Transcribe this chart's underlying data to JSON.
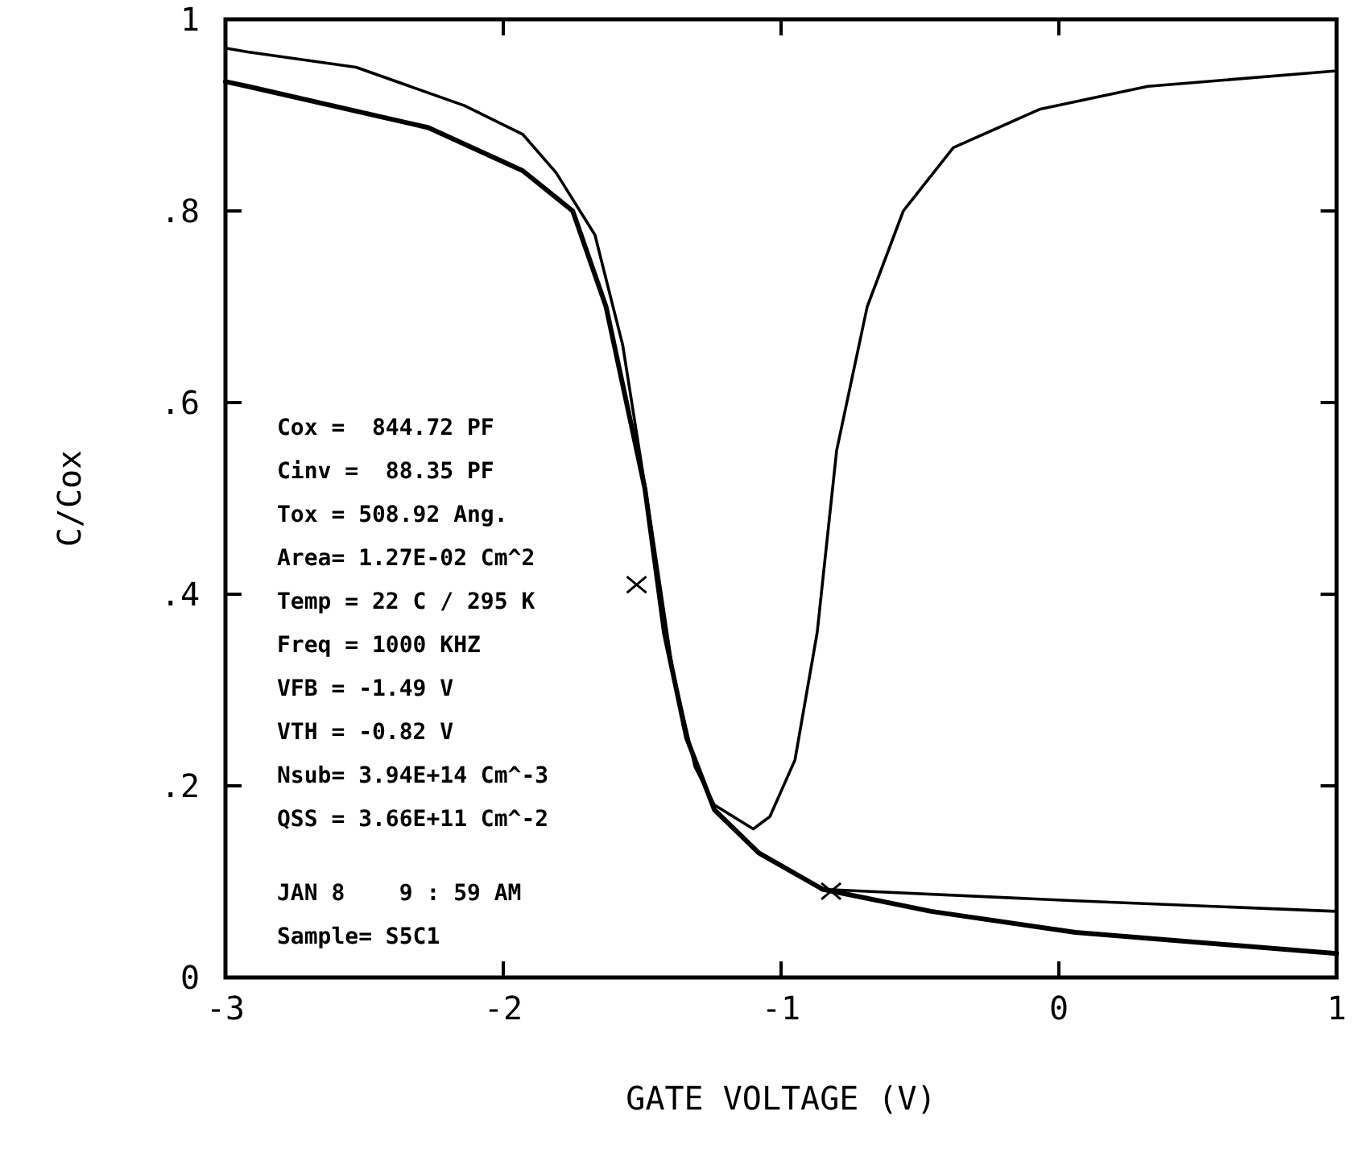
{
  "chart_data": {
    "type": "line",
    "xlabel": "GATE VOLTAGE (V)",
    "ylabel": "C/Cox",
    "xlim": [
      -3,
      1
    ],
    "ylim": [
      0,
      1
    ],
    "xticks": [
      -3,
      -2,
      -1,
      0,
      1
    ],
    "yticks": [
      0,
      {
        "value": 0.2,
        "label": ".2"
      },
      {
        "value": 0.4,
        "label": ".4"
      },
      {
        "value": 0.6,
        "label": ".6"
      },
      {
        "value": 0.8,
        "label": ".8"
      },
      1
    ],
    "grid": false,
    "marker": "none",
    "line_style": "solid",
    "series": [
      {
        "color": "#000000",
        "x": [
          -3,
          -2.92,
          -2.53,
          -2.14,
          -1.93,
          -1.81,
          -1.67,
          -1.57,
          -1.47,
          -1.39,
          -1.31,
          -1.24,
          -1.1,
          -1.04,
          -0.95,
          -0.87,
          -0.8,
          -0.69,
          -0.56,
          -0.38,
          -0.07,
          0.32,
          0.99
        ],
        "values": [
          0.97,
          0.966,
          0.95,
          0.91,
          0.88,
          0.84,
          0.775,
          0.66,
          0.476,
          0.32,
          0.22,
          0.18,
          0.155,
          0.168,
          0.227,
          0.36,
          0.55,
          0.7,
          0.8,
          0.866,
          0.906,
          0.93,
          0.946
        ]
      },
      {
        "color": "#000000",
        "x": [
          -3,
          -2.92,
          -2.27,
          -1.93,
          -1.75,
          -1.63,
          -1.49,
          -1.42,
          -1.34,
          -1.24,
          -1.08,
          -0.85,
          -0.46,
          0.06,
          1
        ],
        "values": [
          0.935,
          0.93,
          0.887,
          0.842,
          0.8,
          0.7,
          0.51,
          0.36,
          0.25,
          0.175,
          0.13,
          0.092,
          0.069,
          0.047,
          0.025
        ]
      },
      {
        "color": "#000000",
        "x": [
          -1.63,
          -1.49,
          -1.42,
          -1.34,
          -1.24,
          -1.08,
          -0.85,
          0.06,
          1
        ],
        "values": [
          0.7,
          0.51,
          0.36,
          0.25,
          0.175,
          0.13,
          0.092,
          0.08,
          0.069
        ]
      },
      {
        "type": "scatter",
        "marker": "cross",
        "color": "#000000",
        "x": [
          -1.52,
          -0.82
        ],
        "values": [
          0.41,
          0.09
        ]
      }
    ],
    "annotations": [
      "Cox =  844.72 PF",
      "Cinv =  88.35 PF",
      "Tox = 508.92 Ang.",
      "Area= 1.27E-02 Cm^2",
      "Temp = 22 C / 295 K",
      "Freq = 1000 KHZ",
      "VFB = -1.49 V",
      "VTH = -0.82 V",
      "Nsub= 3.94E+14 Cm^-3",
      "QSS = 3.66E+11 Cm^-2",
      "JAN 8    9 : 59 AM",
      "Sample= S5C1"
    ]
  }
}
